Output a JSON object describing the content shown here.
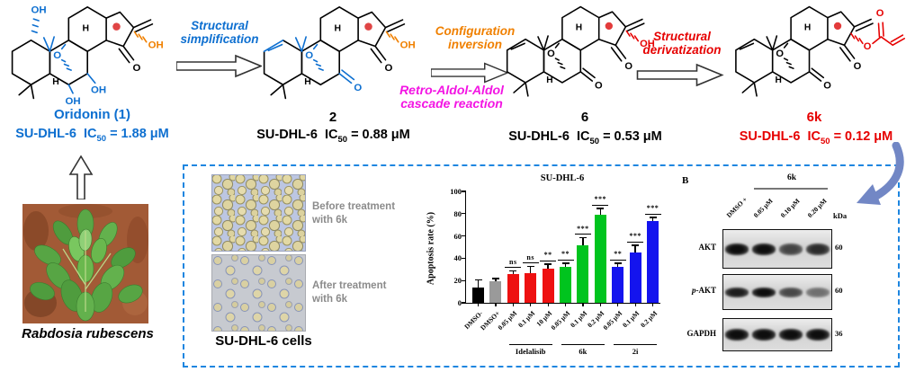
{
  "colors": {
    "blue": "#0d6fd0",
    "orange": "#f08000",
    "magenta": "#f314e3",
    "red": "#e60000",
    "box_border": "#1e86e0",
    "curve_arrow": "#7287c5",
    "chart_red": "#ee1111",
    "chart_green": "#00c41e",
    "chart_blue": "#1414ee"
  },
  "scheme": {
    "compounds": [
      {
        "name": "Oridonin (1)",
        "assay": "SU-DHL-6",
        "ic": "IC",
        "ic_sub": "50",
        "ic_value": "= 1.88 μM"
      },
      {
        "name": "2",
        "assay": "SU-DHL-6",
        "ic": "IC",
        "ic_sub": "50",
        "ic_value": "= 0.88 μM"
      },
      {
        "name": "6",
        "assay": "SU-DHL-6",
        "ic": "IC",
        "ic_sub": "50",
        "ic_value": "= 0.53 μM"
      },
      {
        "name": "6k",
        "assay": "SU-DHL-6",
        "ic": "IC",
        "ic_sub": "50",
        "ic_value": "= 0.12 μM"
      }
    ],
    "arrows": [
      {
        "line1": "Structural",
        "line2": "simplification"
      },
      {
        "top1": "Configuration",
        "top2": "inversion",
        "bottom1": "Retro-Aldol-Aldol",
        "bottom2": "cascade reaction"
      },
      {
        "line1": "Structural",
        "line2": "derivatization"
      }
    ],
    "plant_label": "Rabdosia rubescens",
    "atoms": {
      "oh": "OH",
      "o": "O",
      "h": "H"
    }
  },
  "panel": {
    "cells": {
      "before_line1": "Before treatment",
      "before_line2": "with 6k",
      "after_line1": "After treatment",
      "after_line2": "with 6k",
      "caption": "SU-DHL-6 cells"
    },
    "blot": {
      "panel_label": "B",
      "treatment_label": "6k",
      "lanes": [
        "DMSO +",
        "0.05 μM",
        "0.10 μM",
        "0.20 μM"
      ],
      "unit_label": "kDa",
      "rows": [
        {
          "label": "AKT",
          "kda": "60"
        },
        {
          "label": "p-AKT",
          "kda": "60"
        },
        {
          "label": "GAPDH",
          "kda": "36"
        }
      ]
    }
  },
  "chart_data": {
    "type": "bar",
    "title": "SU-DHL-6",
    "ylabel": "Apoptosis rate (%)",
    "ylim": [
      0,
      100
    ],
    "yticks": [
      0,
      20,
      40,
      60,
      80,
      100
    ],
    "categories": [
      "DMSO-",
      "DMSO+",
      "0.05 μM",
      "0.1 μM",
      "10 μM",
      "0.05 μM",
      "0.1 μM",
      "0.2 μM",
      "0.05 μM",
      "0.1 μM",
      "0.2 μM"
    ],
    "values": [
      14,
      19,
      26,
      27,
      31,
      32,
      52,
      79,
      32,
      45,
      73
    ],
    "errors": [
      6,
      2,
      2,
      5,
      3,
      3,
      6,
      5,
      3,
      6,
      3
    ],
    "significance": [
      "",
      "",
      "ns",
      "ns",
      "**",
      "**",
      "***",
      "***",
      "**",
      "***",
      "***"
    ],
    "bar_colors": [
      "#000000",
      "#9a9a9a",
      "#ee1111",
      "#ee1111",
      "#ee1111",
      "#00c41e",
      "#00c41e",
      "#00c41e",
      "#1414ee",
      "#1414ee",
      "#1414ee"
    ],
    "groups": [
      {
        "label": "Idelalisib",
        "from": 2,
        "to": 4
      },
      {
        "label": "6k",
        "from": 5,
        "to": 7
      },
      {
        "label": "2i",
        "from": 8,
        "to": 10
      }
    ],
    "legend_position": "none",
    "grid": false
  }
}
